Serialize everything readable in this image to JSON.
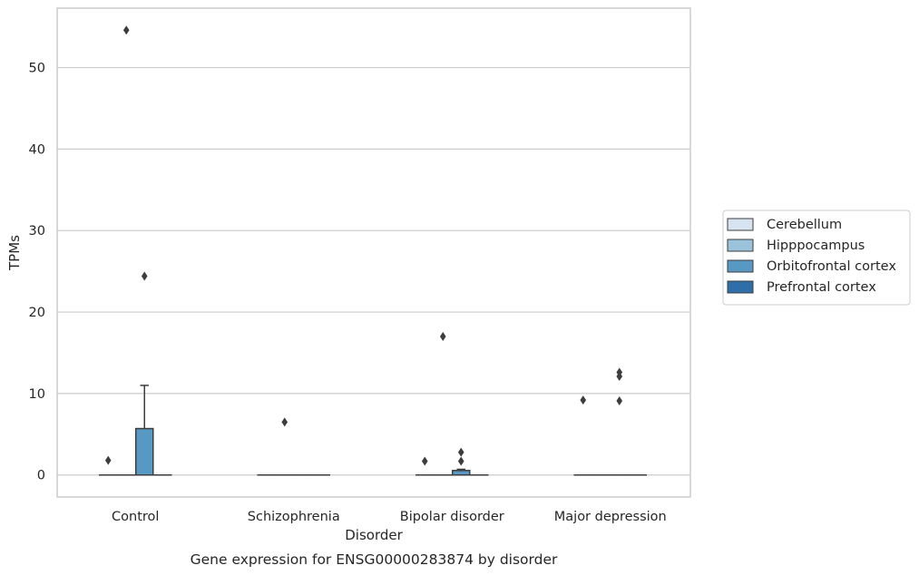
{
  "chart_data": {
    "type": "box",
    "caption": "Gene expression for ENSG00000283874 by disorder",
    "xlabel": "Disorder",
    "ylabel": "TPMs",
    "ylim": [
      -2.7,
      57.3
    ],
    "yticks": [
      0,
      10,
      20,
      30,
      40,
      50
    ],
    "grid": "horizontal",
    "legend_position": "right",
    "categories": [
      "Control",
      "Schizophrenia",
      "Bipolar disorder",
      "Major depression"
    ],
    "series": [
      {
        "name": "Cerebellum",
        "color": "#d6e3f0",
        "boxes": [
          {
            "q1": 0,
            "median": 0,
            "q3": 0,
            "whisker_low": 0,
            "whisker_high": 0,
            "outliers": [
              1.8
            ]
          },
          {
            "q1": 0,
            "median": 0,
            "q3": 0,
            "whisker_low": 0,
            "whisker_high": 0,
            "outliers": []
          },
          {
            "q1": 0,
            "median": 0,
            "q3": 0,
            "whisker_low": 0,
            "whisker_high": 0,
            "outliers": [
              1.7
            ]
          },
          {
            "q1": 0,
            "median": 0,
            "q3": 0,
            "whisker_low": 0,
            "whisker_high": 0,
            "outliers": [
              9.2
            ]
          }
        ]
      },
      {
        "name": "Hipppocampus",
        "color": "#9cc3dc",
        "boxes": [
          {
            "q1": 0,
            "median": 0,
            "q3": 0,
            "whisker_low": 0,
            "whisker_high": 0,
            "outliers": [
              54.6
            ]
          },
          {
            "q1": 0,
            "median": 0,
            "q3": 0,
            "whisker_low": 0,
            "whisker_high": 0,
            "outliers": [
              6.5
            ]
          },
          {
            "q1": 0,
            "median": 0,
            "q3": 0,
            "whisker_low": 0,
            "whisker_high": 0,
            "outliers": [
              17.0
            ]
          },
          {
            "q1": 0,
            "median": 0,
            "q3": 0,
            "whisker_low": 0,
            "whisker_high": 0,
            "outliers": []
          }
        ]
      },
      {
        "name": "Orbitofrontal cortex",
        "color": "#5899c4",
        "boxes": [
          {
            "q1": 0,
            "median": 0,
            "q3": 5.7,
            "whisker_low": 0,
            "whisker_high": 11.0,
            "outliers": [
              24.4
            ]
          },
          {
            "q1": 0,
            "median": 0,
            "q3": 0,
            "whisker_low": 0,
            "whisker_high": 0,
            "outliers": []
          },
          {
            "q1": 0,
            "median": 0,
            "q3": 0.55,
            "whisker_low": 0,
            "whisker_high": 0.7,
            "outliers": [
              1.7,
              2.8
            ]
          },
          {
            "q1": 0,
            "median": 0,
            "q3": 0,
            "whisker_low": 0,
            "whisker_high": 0,
            "outliers": [
              9.1,
              12.1,
              12.6
            ]
          }
        ]
      },
      {
        "name": "Prefrontal cortex",
        "color": "#2f6ea8",
        "boxes": [
          {
            "q1": 0,
            "median": 0,
            "q3": 0,
            "whisker_low": 0,
            "whisker_high": 0,
            "outliers": []
          },
          {
            "q1": 0,
            "median": 0,
            "q3": 0,
            "whisker_low": 0,
            "whisker_high": 0,
            "outliers": []
          },
          {
            "q1": 0,
            "median": 0,
            "q3": 0,
            "whisker_low": 0,
            "whisker_high": 0,
            "outliers": []
          },
          {
            "q1": 0,
            "median": 0,
            "q3": 0,
            "whisker_low": 0,
            "whisker_high": 0,
            "outliers": []
          }
        ]
      }
    ]
  }
}
